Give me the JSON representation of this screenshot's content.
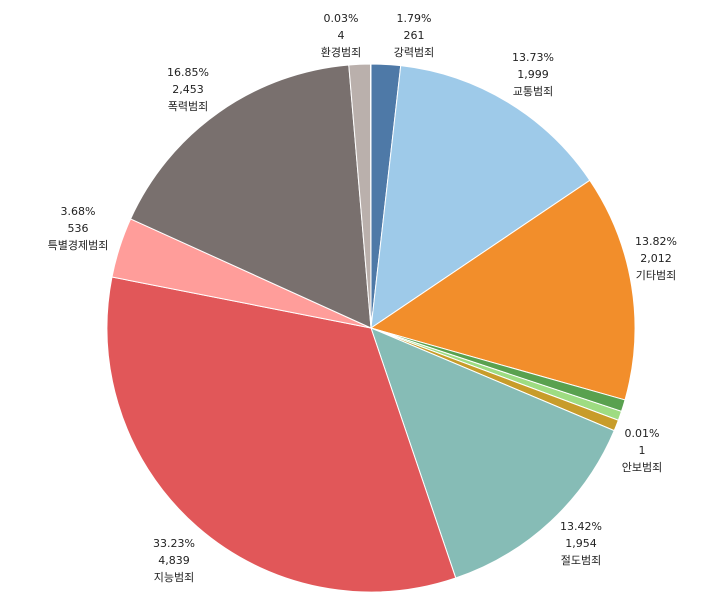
{
  "chart_data": {
    "type": "pie",
    "slices": [
      {
        "name": "강력범죄",
        "percent_label": "1.79%",
        "value_label": "261",
        "value": 261,
        "color": "#4e79a7"
      },
      {
        "name": "교통범죄",
        "percent_label": "13.73%",
        "value_label": "1,999",
        "value": 1999,
        "color": "#9ecae9"
      },
      {
        "name": "기타범죄",
        "percent_label": "13.82%",
        "value_label": "2,012",
        "value": 2012,
        "color": "#f28e2b"
      },
      {
        "name": "",
        "percent_label": "",
        "value_label": "",
        "value": 105,
        "color": "#59a14f"
      },
      {
        "name": "",
        "percent_label": "",
        "value_label": "",
        "value": 82,
        "color": "#9edc82"
      },
      {
        "name": "안보범죄",
        "percent_label": "0.01%",
        "value_label": "1",
        "value": 1,
        "color": "#e15759"
      },
      {
        "name": "",
        "percent_label": "",
        "value_label": "",
        "value": 97,
        "color": "#c89c2a"
      },
      {
        "name": "절도범죄",
        "percent_label": "13.42%",
        "value_label": "1,954",
        "value": 1954,
        "color": "#86bcb6"
      },
      {
        "name": "지능범죄",
        "percent_label": "33.23%",
        "value_label": "4,839",
        "value": 4839,
        "color": "#e15759"
      },
      {
        "name": "특별경제범죄",
        "percent_label": "3.68%",
        "value_label": "536",
        "value": 536,
        "color": "#ff9d9a"
      },
      {
        "name": "폭력범죄",
        "percent_label": "16.85%",
        "value_label": "2,453",
        "value": 2453,
        "color": "#79706e"
      },
      {
        "name": "",
        "percent_label": "",
        "value_label": "",
        "value": 191,
        "color": "#bab0ac"
      },
      {
        "name": "환경범죄",
        "percent_label": "0.03%",
        "value_label": "4",
        "value": 4,
        "color": "#79706e"
      }
    ]
  }
}
